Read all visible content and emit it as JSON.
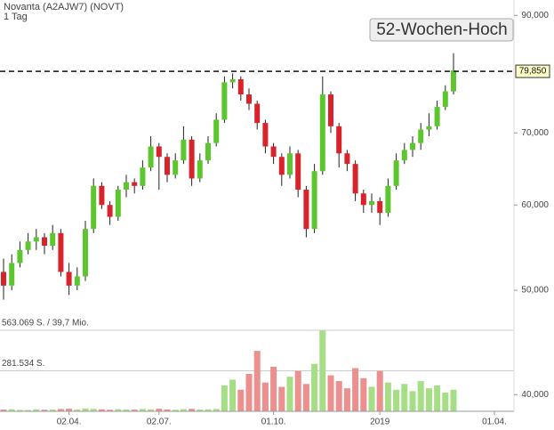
{
  "chart_data": {
    "type": "candlestick",
    "title": "Novanta (A2AJW7) (NOVT)",
    "subtitle": "1 Tag",
    "annotation": "52-Wochen-Hoch",
    "reference_line": {
      "value": 79850,
      "label": "79,850"
    },
    "categories": [
      null,
      null,
      null,
      null,
      null,
      null,
      null,
      null,
      "02.04.",
      null,
      null,
      null,
      null,
      null,
      null,
      null,
      null,
      null,
      null,
      "02.07.",
      null,
      null,
      null,
      null,
      null,
      null,
      null,
      null,
      null,
      null,
      null,
      null,
      null,
      "01.10.",
      null,
      null,
      null,
      null,
      null,
      null,
      null,
      null,
      null,
      null,
      null,
      null,
      "2019",
      null,
      null,
      null,
      null,
      null,
      null,
      null,
      null,
      null,
      null,
      null,
      null,
      null,
      "01.04."
    ],
    "open": [
      52000,
      50500,
      53000,
      54500,
      55500,
      56000,
      55000,
      56500,
      52000,
      50500,
      51500,
      57000,
      62500,
      60000,
      58500,
      62000,
      63000,
      62500,
      65000,
      68000,
      66500,
      64000,
      66000,
      69000,
      63500,
      66000,
      68500,
      72000,
      78000,
      78500,
      76000,
      74500,
      71500,
      68000,
      66500,
      64000,
      67000,
      62000,
      57000,
      64500,
      76000,
      71000,
      67000,
      65500,
      61500,
      60000,
      60500,
      59000,
      62500,
      66000,
      67500,
      68500,
      70500,
      71000,
      74000,
      76500,
      null,
      null,
      null,
      null,
      null
    ],
    "high": [
      53500,
      54000,
      55500,
      56500,
      57000,
      56500,
      57500,
      57000,
      53000,
      52500,
      58000,
      63500,
      63000,
      60500,
      62500,
      64000,
      63500,
      66000,
      69500,
      68500,
      67000,
      67000,
      71000,
      69500,
      67000,
      69500,
      73000,
      79000,
      79500,
      79000,
      77000,
      75000,
      72000,
      68500,
      67000,
      68000,
      67500,
      62500,
      65500,
      79000,
      76500,
      71500,
      67500,
      66000,
      62000,
      61500,
      61000,
      63500,
      67000,
      68500,
      69500,
      71500,
      73000,
      75000,
      77500,
      83000,
      null,
      null,
      null,
      null,
      null
    ],
    "low": [
      49000,
      50000,
      52500,
      54000,
      54500,
      54000,
      54500,
      51500,
      49500,
      50000,
      51000,
      56500,
      59500,
      57500,
      58000,
      61000,
      61500,
      62000,
      64500,
      62000,
      63000,
      63500,
      65500,
      62500,
      63000,
      65500,
      68000,
      71500,
      77000,
      75000,
      73500,
      70500,
      67000,
      65500,
      62500,
      63500,
      61000,
      56000,
      56500,
      64000,
      70000,
      65000,
      64500,
      60500,
      59000,
      59000,
      57500,
      58500,
      62000,
      65500,
      66500,
      67500,
      69500,
      70500,
      73500,
      76000,
      null,
      null,
      null,
      null,
      null
    ],
    "close": [
      50500,
      53000,
      54500,
      55500,
      56000,
      55000,
      56500,
      52000,
      50500,
      51500,
      57000,
      62500,
      60000,
      58500,
      62000,
      63000,
      62500,
      65000,
      68000,
      66500,
      64000,
      66000,
      69000,
      63500,
      66000,
      68500,
      72000,
      78000,
      78500,
      76000,
      74500,
      71500,
      68000,
      66500,
      64000,
      67000,
      62000,
      57000,
      64500,
      76000,
      71000,
      67000,
      65500,
      61500,
      60000,
      60500,
      59000,
      62500,
      66000,
      67500,
      68500,
      70500,
      71000,
      74000,
      76500,
      80000,
      null,
      null,
      null,
      null,
      null
    ],
    "up_color": "#5cc62e",
    "down_color": "#d8232a",
    "ylim": [
      38600,
      93000
    ],
    "log_scale": true,
    "yticks": [
      {
        "value": 40000,
        "label": "40,000"
      },
      {
        "value": 50000,
        "label": "50,000"
      },
      {
        "value": 60000,
        "label": "60,000"
      },
      {
        "value": 70000,
        "label": "70,000"
      },
      {
        "value": 90000,
        "label": "90,000"
      }
    ],
    "volume": {
      "values": [
        12000,
        15000,
        10000,
        9000,
        14000,
        11000,
        13000,
        16000,
        18000,
        12000,
        20000,
        17000,
        14000,
        11000,
        15000,
        13000,
        12000,
        16000,
        14000,
        18000,
        13000,
        11000,
        15000,
        17000,
        12000,
        14000,
        16000,
        180000,
        220000,
        150000,
        260000,
        420000,
        200000,
        310000,
        170000,
        240000,
        280000,
        190000,
        330000,
        560000,
        250000,
        210000,
        160000,
        300000,
        230000,
        170000,
        280000,
        200000,
        150000,
        190000,
        140000,
        210000,
        160000,
        180000,
        130000,
        150000,
        null,
        null,
        null,
        null,
        null
      ],
      "up_color": "#a6de86",
      "down_color": "#eb8f8f",
      "ylim": [
        0,
        563069
      ],
      "yticks": [
        {
          "value": 281534,
          "label": "281.534 S."
        },
        {
          "value": 563069,
          "label": "563.069 S. / 39,7 Mio."
        }
      ]
    }
  }
}
